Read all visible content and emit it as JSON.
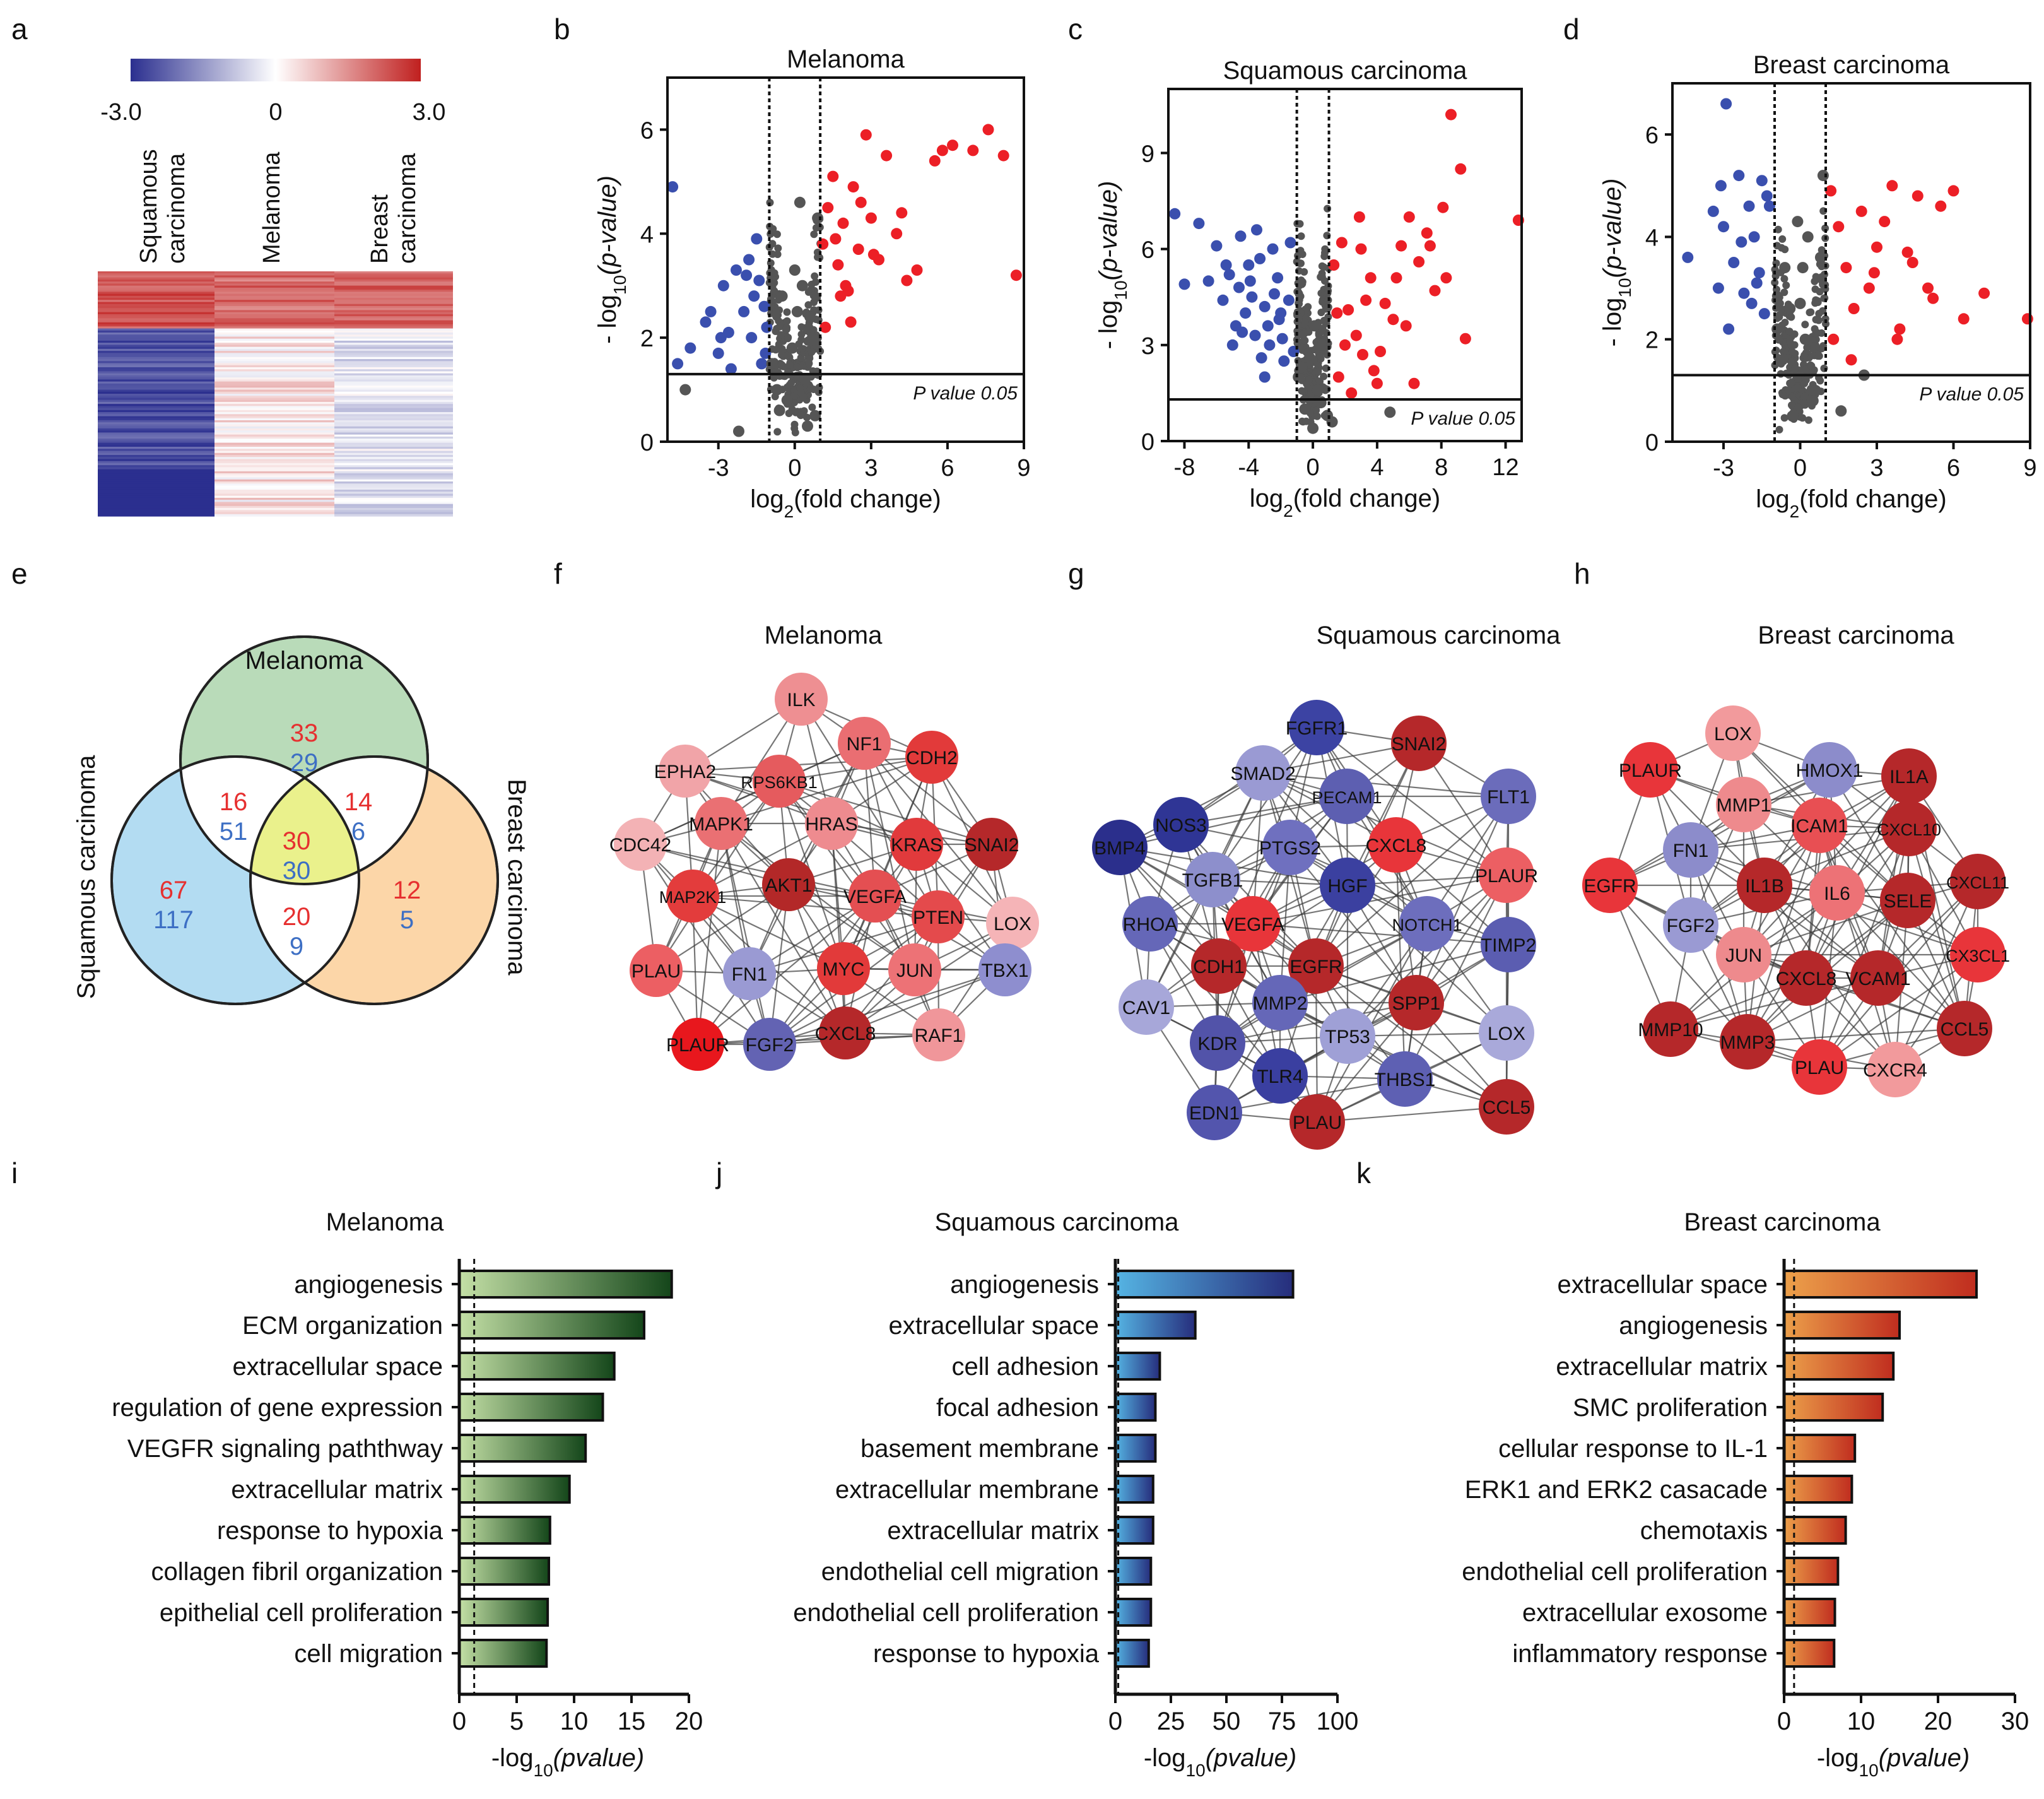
{
  "panel_letters": [
    "a",
    "b",
    "c",
    "d",
    "e",
    "f",
    "g",
    "h",
    "i",
    "j",
    "k"
  ],
  "heatmap": {
    "scale_min": "-3.0",
    "scale_mid": "0",
    "scale_max": "3.0",
    "columns": [
      {
        "line1": "Squamous",
        "line2": "carcinoma"
      },
      {
        "line1": "Melanoma",
        "line2": ""
      },
      {
        "line1": "Breast",
        "line2": "carcinoma"
      }
    ],
    "colors": {
      "low": "#2b2f8f",
      "mid": "#ffffff",
      "high": "#c0201f"
    }
  },
  "volcano_common": {
    "xlabel_pre": "log",
    "xlabel_sub": "2",
    "xlabel_post": "(fold change)",
    "ylabel_pre": "- log",
    "ylabel_sub": "10",
    "ylabel_it": "(p-value)",
    "pvalue_label": "P value 0.05"
  },
  "chart_data": [
    {
      "type": "scatter",
      "panel": "b",
      "title": "Melanoma",
      "xlim": [
        -5,
        9
      ],
      "ylim": [
        0,
        7
      ],
      "xticks": [
        -3,
        0,
        3,
        6,
        9
      ],
      "yticks": [
        0,
        2,
        4,
        6
      ],
      "pvalue_line": 1.3,
      "fc_lines": [
        -1,
        1
      ],
      "x": [
        -4.8,
        -4.6,
        -4.3,
        -4.1,
        -3.5,
        -3.3,
        -3.0,
        -2.8,
        -2.6,
        -2.3,
        -2.2,
        -2.0,
        -1.8,
        -1.7,
        -1.6,
        -1.5,
        -1.4,
        -1.3,
        -1.2,
        -1.15,
        -1.1,
        -2.9,
        -2.5,
        -1.9,
        -0.9,
        -0.5,
        -0.3,
        0.0,
        0.2,
        0.4,
        0.6,
        0.8,
        -0.7,
        -0.1,
        0.3,
        0.5,
        0.7,
        0.9,
        -0.6,
        0.1,
        1.1,
        1.3,
        1.5,
        1.7,
        1.9,
        2.1,
        2.3,
        2.5,
        2.8,
        3.0,
        3.3,
        3.6,
        4.0,
        4.4,
        4.8,
        5.5,
        5.8,
        6.2,
        7.0,
        7.6,
        8.2,
        8.7,
        2.2,
        1.8,
        3.1,
        1.2,
        2.6,
        4.2,
        1.6,
        2.0
      ],
      "y": [
        4.9,
        1.5,
        1.0,
        1.8,
        2.3,
        2.5,
        1.7,
        3.0,
        2.1,
        3.3,
        0.2,
        2.5,
        3.5,
        2.0,
        2.8,
        3.9,
        3.1,
        1.5,
        2.6,
        1.7,
        2.2,
        2.0,
        1.4,
        3.2,
        1.5,
        2.8,
        0.8,
        3.3,
        4.6,
        1.2,
        2.4,
        0.5,
        1.0,
        1.8,
        3.0,
        0.3,
        2.0,
        4.3,
        0.6,
        2.5,
        3.8,
        4.5,
        5.1,
        3.4,
        4.2,
        2.9,
        4.9,
        3.7,
        5.9,
        4.3,
        3.5,
        5.5,
        4.0,
        3.1,
        3.3,
        5.4,
        5.6,
        5.7,
        5.6,
        6.0,
        5.5,
        3.2,
        2.3,
        2.8,
        3.6,
        2.2,
        4.6,
        4.4,
        3.9,
        3.0
      ]
    },
    {
      "type": "scatter",
      "panel": "c",
      "title": "Squamous carcinoma",
      "xlim": [
        -9,
        13
      ],
      "ylim": [
        0,
        11
      ],
      "xticks": [
        -8,
        -4,
        0,
        4,
        8,
        12
      ],
      "yticks": [
        0,
        3,
        6,
        9
      ],
      "pvalue_line": 1.3,
      "fc_lines": [
        -1,
        1
      ],
      "x": [
        -8.6,
        -8.0,
        -7.1,
        -6.5,
        -6.0,
        -5.6,
        -5.2,
        -4.8,
        -4.5,
        -4.2,
        -3.9,
        -3.6,
        -3.3,
        -3.0,
        -2.7,
        -2.4,
        -2.1,
        -1.8,
        -1.5,
        -1.2,
        -5.0,
        -4.0,
        -3.5,
        -2.8,
        -2.2,
        -4.6,
        -3.2,
        -2.5,
        -1.9,
        -3.8,
        -5.4,
        -2.0,
        -1.4,
        -3.0,
        -4.4,
        -0.9,
        -0.5,
        -0.2,
        0.0,
        0.3,
        0.6,
        0.9,
        -0.7,
        0.1,
        0.5,
        1.3,
        1.8,
        2.2,
        2.7,
        3.1,
        3.6,
        4.0,
        4.5,
        5.0,
        5.5,
        6.0,
        6.6,
        7.1,
        7.6,
        8.1,
        8.6,
        9.2,
        1.6,
        2.4,
        3.3,
        4.2,
        5.2,
        6.3,
        7.3,
        8.3,
        1.2,
        2.0,
        3.0,
        4.8,
        9.5,
        12.8,
        1.5,
        3.8,
        5.8,
        2.9
      ],
      "y": [
        7.1,
        4.9,
        6.8,
        5.0,
        6.1,
        4.4,
        5.2,
        3.6,
        6.4,
        4.0,
        5.0,
        3.3,
        5.7,
        4.2,
        3.0,
        4.6,
        3.8,
        2.5,
        4.4,
        2.8,
        3.0,
        5.5,
        6.6,
        3.6,
        5.1,
        4.8,
        2.6,
        6.0,
        3.2,
        4.5,
        5.5,
        4.0,
        6.2,
        2.0,
        3.4,
        2.0,
        1.0,
        2.6,
        0.4,
        1.6,
        3.0,
        0.8,
        2.3,
        3.6,
        1.2,
        5.5,
        6.2,
        4.1,
        3.3,
        2.7,
        5.1,
        1.8,
        4.3,
        3.8,
        6.1,
        7.0,
        5.6,
        6.5,
        4.7,
        7.3,
        10.2,
        8.5,
        2.0,
        1.5,
        4.4,
        2.8,
        5.1,
        1.8,
        6.1,
        5.1,
        0.6,
        3.0,
        6.0,
        0.9,
        3.2,
        6.9,
        4.0,
        2.2,
        3.6,
        7.0
      ]
    },
    {
      "type": "scatter",
      "panel": "d",
      "title": "Breast carcinoma",
      "xlim": [
        -5,
        9
      ],
      "ylim": [
        0,
        7
      ],
      "xticks": [
        -3,
        0,
        3,
        6,
        9
      ],
      "yticks": [
        0,
        2,
        4,
        6
      ],
      "pvalue_line": 1.3,
      "fc_lines": [
        -1,
        1
      ],
      "x": [
        -4.4,
        -3.4,
        -3.2,
        -3.0,
        -2.8,
        -2.6,
        -2.4,
        -2.2,
        -2.0,
        -1.8,
        -1.6,
        -1.5,
        -1.4,
        -1.3,
        -1.2,
        -2.9,
        -2.3,
        -1.7,
        -3.1,
        -1.9,
        -0.9,
        -0.6,
        -0.3,
        0.0,
        0.3,
        0.6,
        0.8,
        -0.7,
        -0.1,
        0.2,
        0.5,
        0.9,
        -0.4,
        0.1,
        1.2,
        1.5,
        1.8,
        2.1,
        2.4,
        2.7,
        3.0,
        3.3,
        3.6,
        3.9,
        4.2,
        4.6,
        5.0,
        5.5,
        6.0,
        6.4,
        7.2,
        8.9,
        1.3,
        2.0,
        2.9,
        3.8,
        1.6,
        2.5,
        4.4,
        5.2
      ],
      "y": [
        3.6,
        4.5,
        3.0,
        4.2,
        2.2,
        3.5,
        5.2,
        2.9,
        4.6,
        4.0,
        3.3,
        5.1,
        2.5,
        4.8,
        4.6,
        6.6,
        3.9,
        3.1,
        5.0,
        2.7,
        2.2,
        3.4,
        0.5,
        2.7,
        4.0,
        1.0,
        3.6,
        1.6,
        4.3,
        2.0,
        0.8,
        5.2,
        2.6,
        3.4,
        4.9,
        4.2,
        3.4,
        2.6,
        4.5,
        3.0,
        3.8,
        4.3,
        5.0,
        2.2,
        3.7,
        4.8,
        3.0,
        4.6,
        4.9,
        2.4,
        2.9,
        2.4,
        2.0,
        1.6,
        3.3,
        2.0,
        0.6,
        1.3,
        3.5,
        2.8
      ]
    },
    {
      "type": "bar",
      "orientation": "horizontal",
      "panel": "i",
      "title": "Melanoma",
      "categories": [
        "angiogenesis",
        "ECM organization",
        "extracellular space",
        "regulation of gene expression",
        "VEGFR signaling paththway",
        "extracellular matrix",
        "response to hypoxia",
        "collagen fibril organization",
        "epithelial cell proliferation",
        "cell migration"
      ],
      "values": [
        18.5,
        16.1,
        13.5,
        12.5,
        11.0,
        9.6,
        7.9,
        7.8,
        7.7,
        7.6
      ],
      "xlim": [
        0,
        20
      ],
      "xticks": [
        0,
        5,
        10,
        15,
        20
      ],
      "significance_line": 1.3,
      "xlabel_pre": "-log",
      "xlabel_sub": "10",
      "xlabel_it": "(pvalue)"
    },
    {
      "type": "bar",
      "orientation": "horizontal",
      "panel": "j",
      "title": "Squamous carcinoma",
      "categories": [
        "angiogenesis",
        "extracellular space",
        "cell adhesion",
        "focal adhesion",
        "basement membrane",
        "extracellular membrane",
        "extracellular matrix",
        "endothelial cell migration",
        "endothelial cell proliferation",
        "response to hypoxia"
      ],
      "values": [
        80,
        36,
        20,
        18,
        18,
        17,
        17,
        16,
        16,
        15
      ],
      "xlim": [
        0,
        100
      ],
      "xticks": [
        0,
        25,
        50,
        75,
        100
      ],
      "significance_line": 1.3,
      "xlabel_pre": "-log",
      "xlabel_sub": "10",
      "xlabel_it": "(pvalue)"
    },
    {
      "type": "bar",
      "orientation": "horizontal",
      "panel": "k",
      "title": "Breast carcinoma",
      "categories": [
        "extracellular space",
        "angiogenesis",
        "extracellular matrix",
        "SMC proliferation",
        "cellular response to IL-1",
        "ERK1 and ERK2 casacade",
        "chemotaxis",
        "endothelial cell proliferation",
        "extracellular exosome",
        "inflammatory response"
      ],
      "values": [
        25.0,
        15.0,
        14.2,
        12.8,
        9.2,
        8.8,
        8.0,
        7.0,
        6.6,
        6.5
      ],
      "xlim": [
        0,
        30
      ],
      "xticks": [
        0,
        10,
        20,
        30
      ],
      "significance_line": 1.3,
      "xlabel_pre": "-log",
      "xlabel_sub": "10",
      "xlabel_it": "(pvalue)"
    }
  ],
  "venn": {
    "labels": {
      "top": "Melanoma",
      "left": "Squamous carcinoma",
      "right": "Breast carcinoma"
    },
    "regions": {
      "mel_only": {
        "red": "33",
        "blue": "29"
      },
      "mel_sq": {
        "red": "16",
        "blue": "51"
      },
      "mel_br": {
        "red": "14",
        "blue": "6"
      },
      "all": {
        "red": "30",
        "blue": "30"
      },
      "sq_only": {
        "red": "67",
        "blue": "117"
      },
      "sq_br": {
        "red": "20",
        "blue": "9"
      },
      "br_only": {
        "red": "12",
        "blue": "5"
      }
    },
    "colors": {
      "top": "#b9dbb9",
      "left": "#b3dcf2",
      "right": "#fcd6a8",
      "center": "#eaf18c",
      "red_text": "#e63030",
      "blue_text": "#3d6fc4"
    }
  },
  "networks": [
    {
      "panel": "f",
      "title": "Melanoma",
      "nodes": [
        {
          "label": "ILK",
          "color": "#ee8f92"
        },
        {
          "label": "NF1",
          "color": "#ea6e72"
        },
        {
          "label": "CDH2",
          "color": "#e23a3a"
        },
        {
          "label": "EPHA2",
          "color": "#f1a4a8"
        },
        {
          "label": "RPS6KB1",
          "color": "#e55b5e"
        },
        {
          "label": "MAPK1",
          "color": "#ea7073"
        },
        {
          "label": "HRAS",
          "color": "#ee8b8f"
        },
        {
          "label": "KRAS",
          "color": "#e13a3c"
        },
        {
          "label": "SNAI2",
          "color": "#b5282a"
        },
        {
          "label": "CDC42",
          "color": "#f3b2b5"
        },
        {
          "label": "MAP2K1",
          "color": "#e33c3c"
        },
        {
          "label": "AKT1",
          "color": "#b32828"
        },
        {
          "label": "VEGFA",
          "color": "#e44f52"
        },
        {
          "label": "PTEN",
          "color": "#e44a4c"
        },
        {
          "label": "LOX",
          "color": "#f5b4b7"
        },
        {
          "label": "PLAU",
          "color": "#ec5f63"
        },
        {
          "label": "FN1",
          "color": "#9a9ad3"
        },
        {
          "label": "MYC",
          "color": "#e23a3a"
        },
        {
          "label": "JUN",
          "color": "#ed7276"
        },
        {
          "label": "TBX1",
          "color": "#8e8ecf"
        },
        {
          "label": "PLAUR",
          "color": "#e8171d"
        },
        {
          "label": "FGF2",
          "color": "#6363b3"
        },
        {
          "label": "CXCL8",
          "color": "#b5282a"
        },
        {
          "label": "RAF1",
          "color": "#f0969a"
        }
      ]
    },
    {
      "panel": "g",
      "title": "Squamous carcinoma",
      "nodes": [
        {
          "label": "FGFR1",
          "color": "#3c43a3"
        },
        {
          "label": "SNAI2",
          "color": "#b5282a"
        },
        {
          "label": "SMAD2",
          "color": "#9a9ad3"
        },
        {
          "label": "PECAM1",
          "color": "#5d5fb1"
        },
        {
          "label": "FLT1",
          "color": "#6b6cbb"
        },
        {
          "label": "NOS3",
          "color": "#2f3595"
        },
        {
          "label": "BMP4",
          "color": "#2b2f8c"
        },
        {
          "label": "PTGS2",
          "color": "#6f70bf"
        },
        {
          "label": "CXCL8",
          "color": "#e8353a"
        },
        {
          "label": "TGFB1",
          "color": "#8d8fcc"
        },
        {
          "label": "HGF",
          "color": "#3b40a0"
        },
        {
          "label": "PLAUR",
          "color": "#ec5f63"
        },
        {
          "label": "RHOA",
          "color": "#6567b8"
        },
        {
          "label": "VEGFA",
          "color": "#e8353a"
        },
        {
          "label": "NOTCH1",
          "color": "#6d6ebd"
        },
        {
          "label": "CDH1",
          "color": "#b5282a"
        },
        {
          "label": "EGFR",
          "color": "#b5282a"
        },
        {
          "label": "TIMP2",
          "color": "#5b5db1"
        },
        {
          "label": "MMP2",
          "color": "#6567b8"
        },
        {
          "label": "SPP1",
          "color": "#b5282a"
        },
        {
          "label": "CAV1",
          "color": "#a7a7d9"
        },
        {
          "label": "KDR",
          "color": "#5253a9"
        },
        {
          "label": "TP53",
          "color": "#9fa0d6"
        },
        {
          "label": "LOX",
          "color": "#a9a9da"
        },
        {
          "label": "TLR4",
          "color": "#3a3fa0"
        },
        {
          "label": "THBS1",
          "color": "#5e60b3"
        },
        {
          "label": "EDN1",
          "color": "#5355ad"
        },
        {
          "label": "PLAU",
          "color": "#b5282a"
        },
        {
          "label": "CCL5",
          "color": "#b5282a"
        }
      ]
    },
    {
      "panel": "h",
      "title": "Breast carcinoma",
      "nodes": [
        {
          "label": "LOX",
          "color": "#f29a9c"
        },
        {
          "label": "PLAUR",
          "color": "#e8353a"
        },
        {
          "label": "HMOX1",
          "color": "#8c8ccb"
        },
        {
          "label": "IL1A",
          "color": "#b5282a"
        },
        {
          "label": "MMP1",
          "color": "#ee8a8d"
        },
        {
          "label": "ICAM1",
          "color": "#e84f53"
        },
        {
          "label": "CXCL10",
          "color": "#b5282a"
        },
        {
          "label": "FN1",
          "color": "#8c8ccb"
        },
        {
          "label": "EGFR",
          "color": "#e8353a"
        },
        {
          "label": "CXCL11",
          "color": "#b5282a"
        },
        {
          "label": "IL1B",
          "color": "#b5282a"
        },
        {
          "label": "IL6",
          "color": "#ed7276"
        },
        {
          "label": "SELE",
          "color": "#b5282a"
        },
        {
          "label": "FGF2",
          "color": "#9a9ad3"
        },
        {
          "label": "CX3CL1",
          "color": "#e8353a"
        },
        {
          "label": "JUN",
          "color": "#ee8a8d"
        },
        {
          "label": "CXCL8",
          "color": "#b5282a"
        },
        {
          "label": "VCAM1",
          "color": "#b5282a"
        },
        {
          "label": "MMP10",
          "color": "#b5282a"
        },
        {
          "label": "CCL5",
          "color": "#b5282a"
        },
        {
          "label": "MMP3",
          "color": "#b5282a"
        },
        {
          "label": "PLAU",
          "color": "#e8353a"
        },
        {
          "label": "CXCR4",
          "color": "#f29a9c"
        }
      ]
    }
  ],
  "colors": {
    "volcano_up": "#ec1f26",
    "volcano_down": "#3a4fae",
    "volcano_ns": "#555555",
    "bar_i": [
      "#c4e0a6",
      "#14461a"
    ],
    "bar_j": [
      "#55b4e3",
      "#262d7c"
    ],
    "bar_k": [
      "#eca04a",
      "#c02d1f"
    ]
  }
}
